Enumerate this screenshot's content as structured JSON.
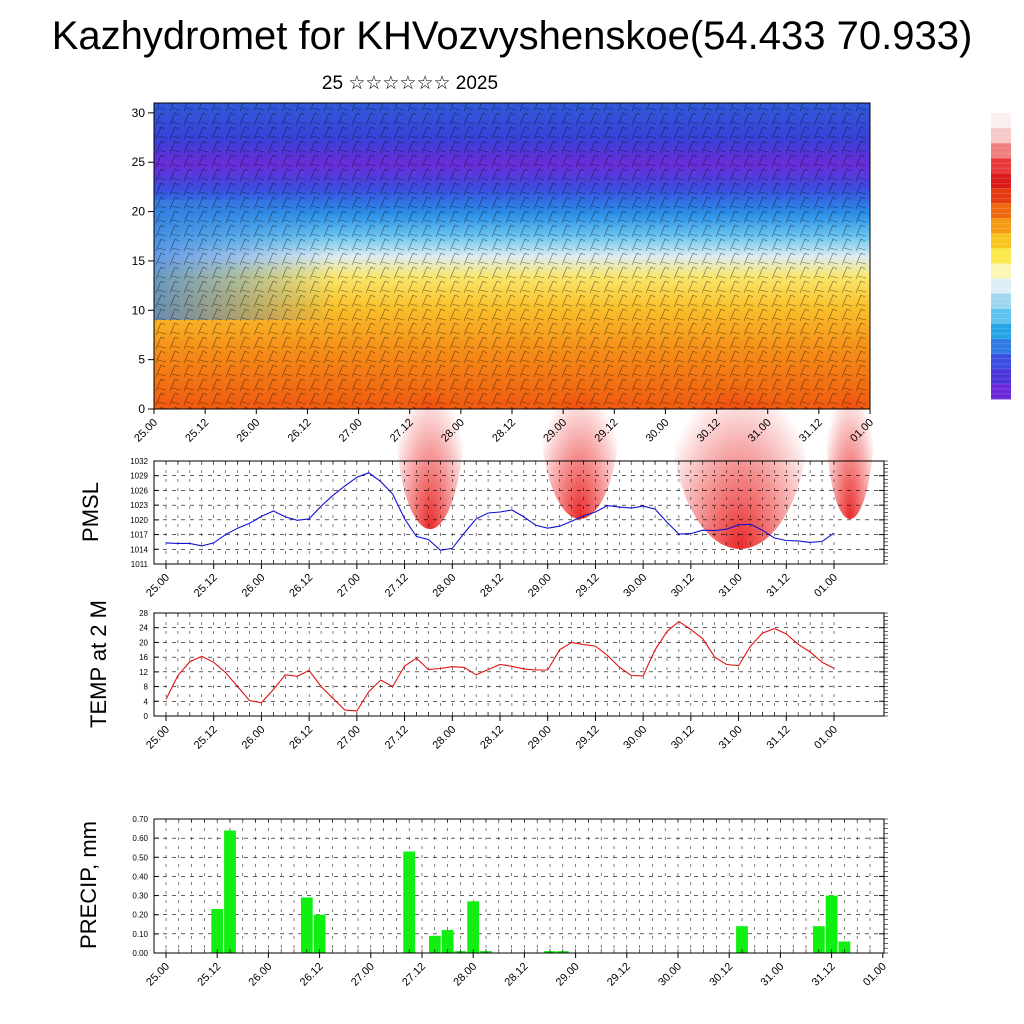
{
  "title": "Kazhydromet for KHVozvyshenskoe(54.433 70.933)",
  "subtitle": "25 ☆☆☆☆☆☆ 2025",
  "colorbar": {
    "colors": [
      "#fbeeee",
      "#f7c8c8",
      "#f08080",
      "#e83a3a",
      "#dd1a1a",
      "#e43b10",
      "#ee6a10",
      "#f49a15",
      "#f8c520",
      "#fbe84a",
      "#fbf6b6",
      "#dceef6",
      "#9fd7ef",
      "#5ec3ef",
      "#27a4e6",
      "#2f7ae6",
      "#3a4ee0",
      "#4a33d8",
      "#6a28d8"
    ]
  },
  "chart_data": [
    {
      "type": "heatmap",
      "name_hint": "cross-section",
      "x_tick_labels": [
        "25.00",
        "25.12",
        "26.00",
        "26.12",
        "27.00",
        "27.12",
        "28.00",
        "28.12",
        "29.00",
        "29.12",
        "30.00",
        "30.12",
        "31.00",
        "31.12",
        "01.00"
      ],
      "y_ticks": [
        0,
        5,
        10,
        15,
        20,
        25,
        30
      ],
      "ylim": [
        0,
        31
      ]
    },
    {
      "type": "line",
      "ylabel": "PMSL",
      "color": "#1010d0",
      "x_tick_labels": [
        "25.00",
        "25.12",
        "26.00",
        "26.12",
        "27.00",
        "27.12",
        "28.00",
        "28.12",
        "29.00",
        "29.12",
        "30.00",
        "30.12",
        "31.00",
        "31.12",
        "01.00"
      ],
      "y_ticks": [
        1011,
        1014,
        1017,
        1020,
        1023,
        1026,
        1029,
        1032
      ],
      "ylim": [
        1011,
        1032
      ],
      "x_step_hours": 3,
      "values": [
        1015.3,
        1015.2,
        1015.2,
        1014.7,
        1015.3,
        1017.0,
        1018.3,
        1019.3,
        1020.7,
        1021.8,
        1020.6,
        1019.9,
        1020.2,
        1022.8,
        1025.0,
        1026.9,
        1028.7,
        1029.6,
        1027.8,
        1025.3,
        1020.2,
        1016.6,
        1016.0,
        1013.8,
        1014.2,
        1017.3,
        1020.2,
        1021.4,
        1021.6,
        1022.0,
        1020.6,
        1018.9,
        1018.3,
        1018.7,
        1019.7,
        1020.8,
        1021.6,
        1022.9,
        1022.6,
        1022.4,
        1022.8,
        1022.2,
        1019.5,
        1017.1,
        1017.2,
        1017.9,
        1017.8,
        1018.1,
        1019.0,
        1019.1,
        1017.9,
        1016.3,
        1015.8,
        1015.7,
        1015.4,
        1015.6,
        1017.3
      ]
    },
    {
      "type": "line",
      "ylabel": "TEMP at 2 M",
      "color": "#e01010",
      "x_tick_labels": [
        "25.00",
        "25.12",
        "26.00",
        "26.12",
        "27.00",
        "27.12",
        "28.00",
        "28.12",
        "29.00",
        "29.12",
        "30.00",
        "30.12",
        "31.00",
        "31.12",
        "01.00"
      ],
      "y_ticks": [
        0,
        4,
        8,
        12,
        16,
        20,
        24,
        28
      ],
      "ylim": [
        0,
        28
      ],
      "x_step_hours": 3,
      "values": [
        4.5,
        11.0,
        14.8,
        16.2,
        14.6,
        11.8,
        8.0,
        4.2,
        3.6,
        7.2,
        11.2,
        10.8,
        12.4,
        8.0,
        4.8,
        1.6,
        1.4,
        6.6,
        9.8,
        8.0,
        13.6,
        15.7,
        12.6,
        12.9,
        13.4,
        13.2,
        11.2,
        12.6,
        14.0,
        13.5,
        12.8,
        12.5,
        12.5,
        18.0,
        20.0,
        19.4,
        19.0,
        16.5,
        13.3,
        11.0,
        10.9,
        18.0,
        23.0,
        25.7,
        23.5,
        21.0,
        16.0,
        14.0,
        13.7,
        19.0,
        22.5,
        23.8,
        22.3,
        19.5,
        17.4,
        14.6,
        13.0
      ]
    },
    {
      "type": "bar",
      "ylabel": "PRECIP, mm",
      "color": "#11ee11",
      "x_tick_labels": [
        "25.00",
        "25.12",
        "26.00",
        "26.12",
        "27.00",
        "27.12",
        "28.00",
        "28.12",
        "29.00",
        "29.12",
        "30.00",
        "30.12",
        "31.00",
        "31.12",
        "01.00"
      ],
      "y_tick_labels": [
        "0.00",
        "0.10",
        "0.20",
        "0.30",
        "0.40",
        "0.50",
        "0.60",
        "0.70"
      ],
      "ylim": [
        0,
        0.7
      ],
      "x_step_hours": 3,
      "values": [
        0,
        0,
        0,
        0,
        0.23,
        0.64,
        0,
        0,
        0,
        0,
        0,
        0.29,
        0.2,
        0,
        0,
        0,
        0,
        0,
        0,
        0.53,
        0,
        0.09,
        0.12,
        0.01,
        0.27,
        0.01,
        0,
        0,
        0,
        0,
        0.01,
        0.01,
        0,
        0,
        0,
        0,
        0,
        0,
        0,
        0,
        0,
        0,
        0,
        0,
        0,
        0.14,
        0,
        0,
        0,
        0,
        0,
        0.14,
        0.3,
        0.06,
        0,
        0
      ]
    }
  ]
}
